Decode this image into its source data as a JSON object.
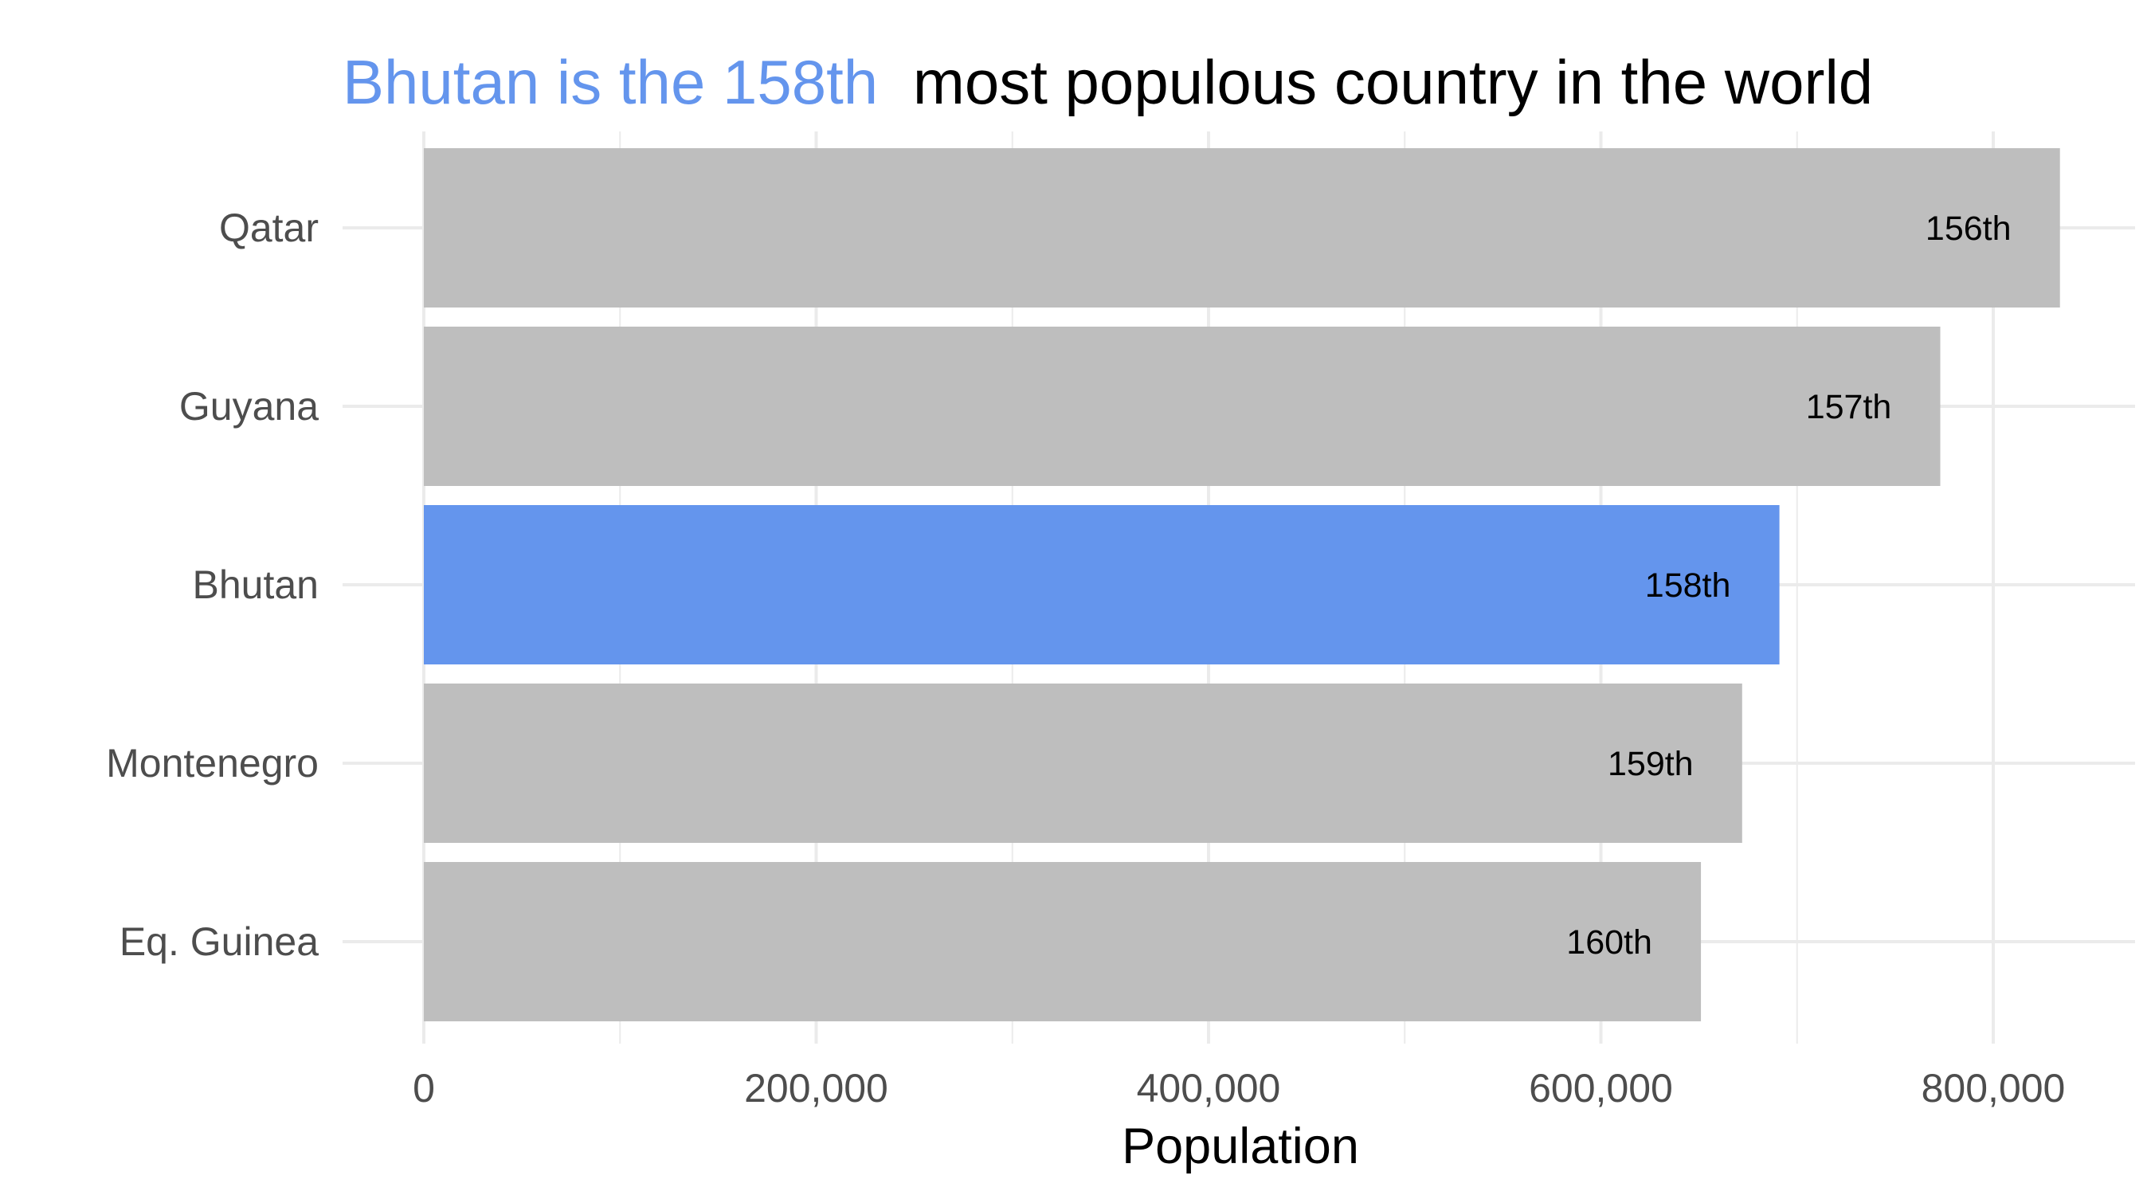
{
  "chart_data": {
    "type": "bar",
    "orientation": "horizontal",
    "title_parts": [
      {
        "text": "Bhutan is the 158th",
        "color": "#6495ED"
      },
      {
        "text": "most populous country in the world",
        "color": "#000000"
      }
    ],
    "xlabel": "Population",
    "ylabel": "",
    "categories": [
      "Qatar",
      "Guyana",
      "Bhutan",
      "Montenegro",
      "Eq. Guinea"
    ],
    "values": [
      834000,
      773000,
      691000,
      672000,
      651000
    ],
    "bar_labels": [
      "156th",
      "157th",
      "158th",
      "159th",
      "160th"
    ],
    "highlight": "Bhutan",
    "xlim": [
      0,
      845000
    ],
    "x_ticks": [
      0,
      200000,
      400000,
      600000,
      800000
    ],
    "x_tick_labels": [
      "0",
      "200,000",
      "400,000",
      "600,000",
      "800,000"
    ],
    "grid": true,
    "legend": "none",
    "colors": {
      "highlight": "#6495ED",
      "default": "#BEBEBE",
      "grid": "#EBEBEB"
    }
  }
}
